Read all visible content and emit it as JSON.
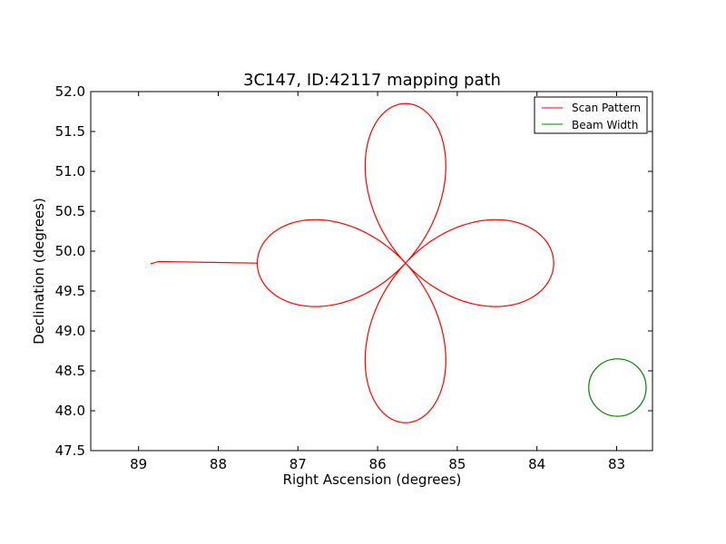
{
  "chart_data": {
    "type": "line",
    "title": "3C147, ID:42117 mapping path",
    "xlabel": "Right Ascension (degrees)",
    "ylabel": "Declination (degrees)",
    "xlim": [
      89.6,
      82.55
    ],
    "ylim": [
      47.5,
      52.0
    ],
    "x_inverted": true,
    "grid": false,
    "legend_position": "top-right",
    "xticks": [
      "89",
      "88",
      "87",
      "86",
      "85",
      "84",
      "83"
    ],
    "xtick_values": [
      89,
      88,
      87,
      86,
      85,
      84,
      83
    ],
    "yticks": [
      "47.5",
      "48.0",
      "48.5",
      "49.0",
      "49.5",
      "50.0",
      "50.5",
      "51.0",
      "51.5",
      "52.0"
    ],
    "ytick_values": [
      47.5,
      48.0,
      48.5,
      49.0,
      49.5,
      50.0,
      50.5,
      51.0,
      51.5,
      52.0
    ],
    "series": [
      {
        "name": "Scan Pattern",
        "color": "#ff0000",
        "kind": "rose-scan",
        "center": [
          85.65,
          49.85
        ],
        "ra_amplitude": 1.86,
        "dec_amplitude": 2.0,
        "lead_in": [
          [
            88.85,
            49.84
          ],
          [
            88.75,
            49.87
          ]
        ]
      },
      {
        "name": "Beam Width",
        "color": "#008000",
        "kind": "circle",
        "center": [
          82.99,
          48.29
        ],
        "radius": 0.36
      }
    ]
  }
}
